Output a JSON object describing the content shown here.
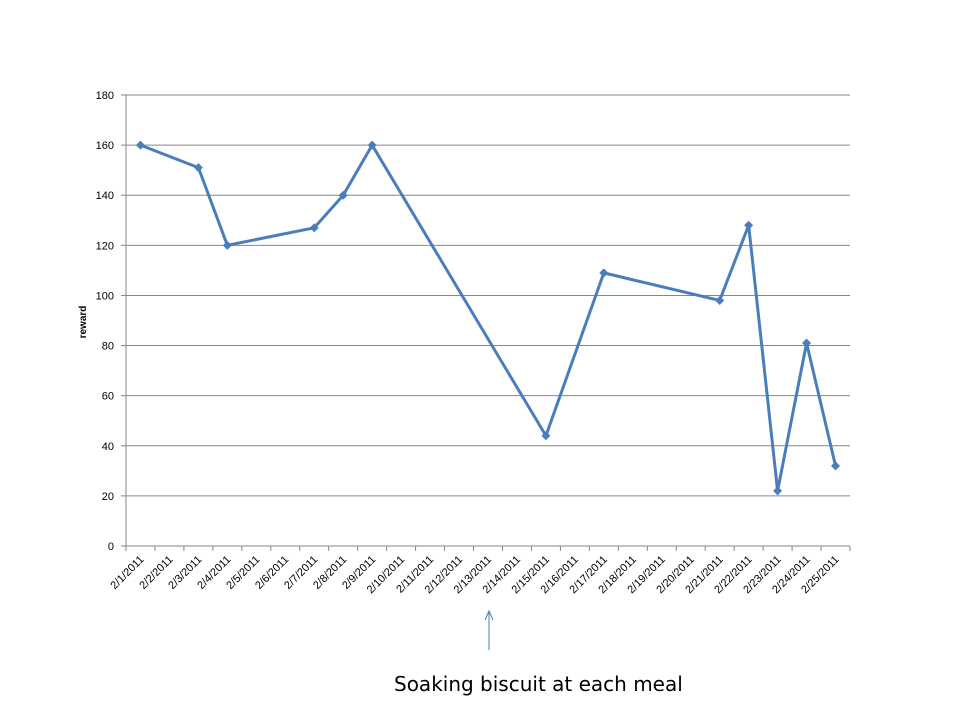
{
  "chart_data": {
    "type": "line",
    "title": "",
    "xlabel": "",
    "ylabel": "reward",
    "ylim": [
      0,
      180
    ],
    "yticks": [
      0,
      20,
      40,
      60,
      80,
      100,
      120,
      140,
      160,
      180
    ],
    "categories": [
      "2/1/2011",
      "2/2/2011",
      "2/3/2011",
      "2/4/2011",
      "2/5/2011",
      "2/6/2011",
      "2/7/2011",
      "2/8/2011",
      "2/9/2011",
      "2/10/2011",
      "2/11/2011",
      "2/12/2011",
      "2/13/2011",
      "2/14/2011",
      "2/15/2011",
      "2/16/2011",
      "2/17/2011",
      "2/18/2011",
      "2/19/2011",
      "2/20/2011",
      "2/21/2011",
      "2/22/2011",
      "2/23/2011",
      "2/24/2011",
      "2/25/2011"
    ],
    "series": [
      {
        "points": [
          {
            "x": "2/1/2011",
            "y": 160
          },
          {
            "x": "2/3/2011",
            "y": 151
          },
          {
            "x": "2/4/2011",
            "y": 120
          },
          {
            "x": "2/7/2011",
            "y": 127
          },
          {
            "x": "2/8/2011",
            "y": 140
          },
          {
            "x": "2/9/2011",
            "y": 160
          },
          {
            "x": "2/15/2011",
            "y": 44
          },
          {
            "x": "2/17/2011",
            "y": 109
          },
          {
            "x": "2/21/2011",
            "y": 98
          },
          {
            "x": "2/22/2011",
            "y": 128
          },
          {
            "x": "2/23/2011",
            "y": 22
          },
          {
            "x": "2/24/2011",
            "y": 81
          },
          {
            "x": "2/25/2011",
            "y": 32
          }
        ]
      }
    ],
    "grid": "horizontal",
    "legend": "none",
    "annotation": {
      "text": "Soaking biscuit at each meal",
      "at_x": "2/13/2011"
    },
    "colors": {
      "series": "#4a7ebb",
      "grid": "#868686",
      "axis": "#868686",
      "arrow": "#4a7ebb"
    }
  }
}
